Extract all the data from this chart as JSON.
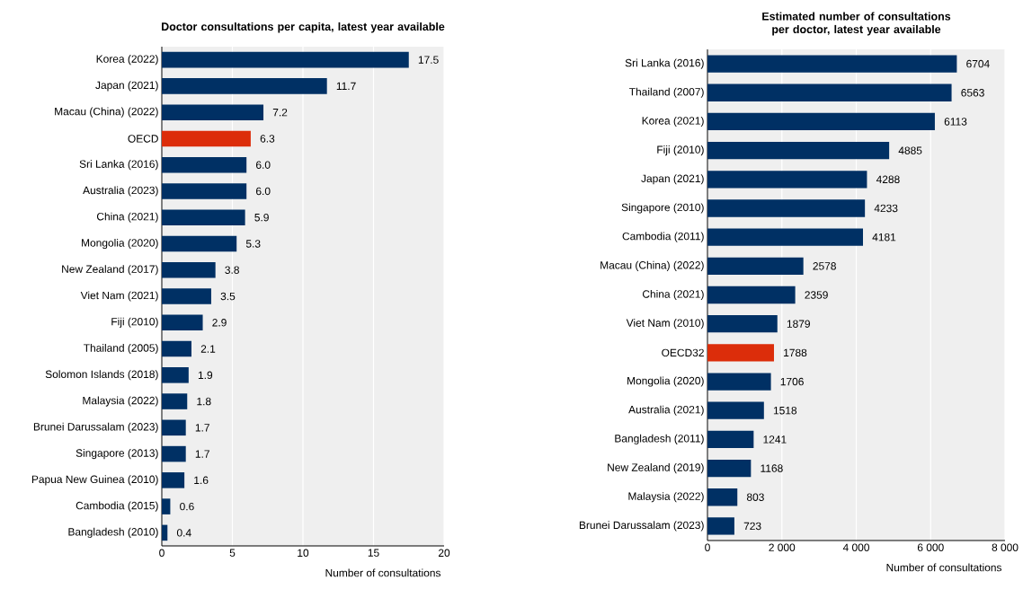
{
  "chart_data": [
    {
      "type": "bar",
      "orientation": "horizontal",
      "title": "Doctor consultations per capita, latest year available",
      "xlabel": "Number of consultations",
      "categories": [
        "Korea (2022)",
        "Japan (2021)",
        "Macau (China) (2022)",
        "OECD",
        "Sri Lanka (2016)",
        "Australia (2023)",
        "China (2021)",
        "Mongolia (2020)",
        "New Zealand (2017)",
        "Viet Nam (2021)",
        "Fiji (2010)",
        "Thailand (2005)",
        "Solomon Islands (2018)",
        "Malaysia (2022)",
        "Brunei Darussalam (2023)",
        "Singapore (2013)",
        "Papua New Guinea (2010)",
        "Cambodia (2015)",
        "Bangladesh (2010)"
      ],
      "values": [
        17.5,
        11.7,
        7.2,
        6.3,
        6.0,
        6.0,
        5.9,
        5.3,
        3.8,
        3.5,
        2.9,
        2.1,
        1.9,
        1.8,
        1.7,
        1.7,
        1.6,
        0.6,
        0.4
      ],
      "value_labels": [
        "17.5",
        "11.7",
        "7.2",
        "6.3",
        "6.0",
        "6.0",
        "5.9",
        "5.3",
        "3.8",
        "3.5",
        "2.9",
        "2.1",
        "1.9",
        "1.8",
        "1.7",
        "1.7",
        "1.6",
        "0.6",
        "0.4"
      ],
      "colors": [
        "#003064",
        "#003064",
        "#003064",
        "#dc2d0a",
        "#003064",
        "#003064",
        "#003064",
        "#003064",
        "#003064",
        "#003064",
        "#003064",
        "#003064",
        "#003064",
        "#003064",
        "#003064",
        "#003064",
        "#003064",
        "#003064",
        "#003064"
      ],
      "xlim": [
        0,
        20
      ],
      "xticks": [
        0,
        5,
        10,
        15,
        20
      ],
      "grid": "x"
    },
    {
      "type": "bar",
      "orientation": "horizontal",
      "title": "Estimated number of consultations per doctor, latest year available",
      "xlabel": "Number of consultations",
      "categories": [
        "Sri Lanka (2016)",
        "Thailand (2007)",
        "Korea (2021)",
        "Fiji (2010)",
        "Japan (2021)",
        "Singapore (2010)",
        "Cambodia (2011)",
        "Macau (China) (2022)",
        "China (2021)",
        "Viet Nam (2010)",
        "OECD32",
        "Mongolia (2020)",
        "Australia (2021)",
        "Bangladesh (2011)",
        "New Zealand (2019)",
        "Malaysia (2022)",
        "Brunei Darussalam (2023)"
      ],
      "values": [
        6704,
        6563,
        6113,
        4885,
        4288,
        4233,
        4181,
        2578,
        2359,
        1879,
        1788,
        1706,
        1518,
        1241,
        1168,
        803,
        723
      ],
      "data_labels": true,
      "colors": [
        "#003064",
        "#003064",
        "#003064",
        "#003064",
        "#003064",
        "#003064",
        "#003064",
        "#003064",
        "#003064",
        "#003064",
        "#dc2d0a",
        "#003064",
        "#003064",
        "#003064",
        "#003064",
        "#003064",
        "#003064"
      ],
      "xlim": [
        0,
        8000
      ],
      "xticks": [
        0,
        {
          "value": 2000,
          "label": "2 000"
        },
        {
          "value": 4000,
          "label": "4 000"
        },
        {
          "value": 6000,
          "label": "6 000"
        },
        {
          "value": 8000,
          "label": "8 000"
        }
      ],
      "grid": "x"
    }
  ]
}
